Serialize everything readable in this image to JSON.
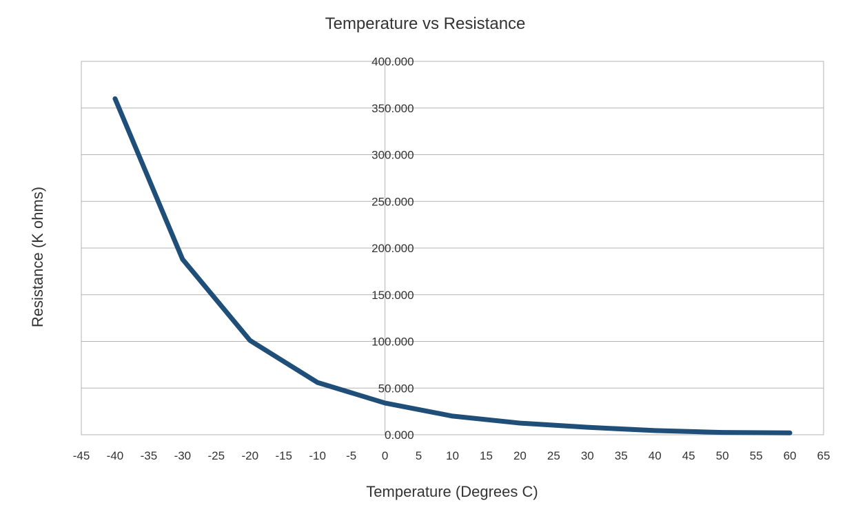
{
  "chart_data": {
    "type": "line",
    "title": "Temperature vs Resistance",
    "xlabel": "Temperature (Degrees C)",
    "ylabel": "Resistance (K ohms)",
    "xlim": [
      -45,
      65
    ],
    "ylim": [
      0,
      400
    ],
    "x_ticks": [
      -45,
      -40,
      -35,
      -30,
      -25,
      -20,
      -15,
      -10,
      -5,
      0,
      5,
      10,
      15,
      20,
      25,
      30,
      35,
      40,
      45,
      50,
      55,
      60,
      65
    ],
    "y_ticks": [
      0,
      50,
      100,
      150,
      200,
      250,
      300,
      350,
      400
    ],
    "y_tick_labels": [
      "0.000",
      "50.000",
      "100.000",
      "150.000",
      "200.000",
      "250.000",
      "300.000",
      "350.000",
      "400.000"
    ],
    "grid": "horizontal",
    "legend": "none",
    "series": [
      {
        "color": "#1f4e79",
        "x": [
          -40,
          -30,
          -20,
          -10,
          0,
          10,
          20,
          30,
          40,
          50,
          60
        ],
        "y": [
          360,
          188,
          101,
          56,
          34,
          20,
          12.5,
          8,
          4.5,
          2.5,
          2
        ]
      }
    ]
  }
}
